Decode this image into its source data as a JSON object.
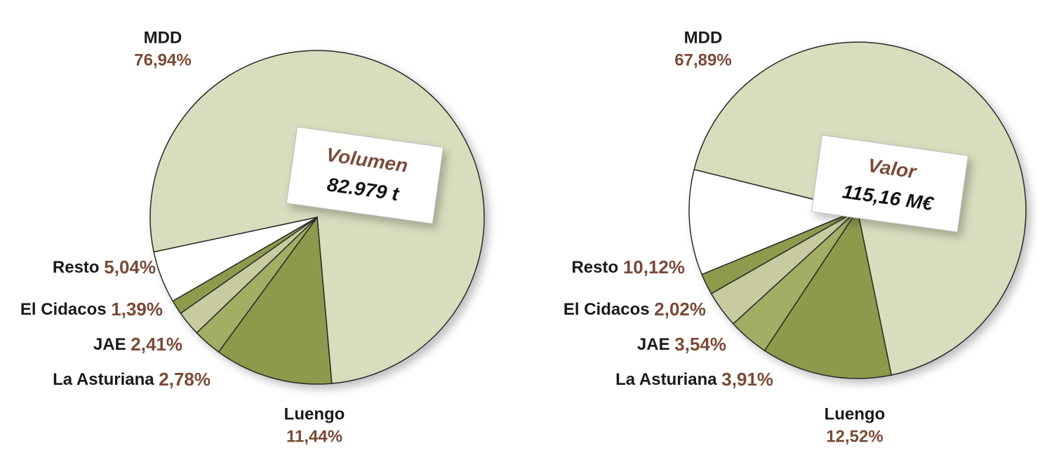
{
  "chart_data": [
    {
      "type": "pie",
      "title": "Volumen",
      "subtitle": "82.979 t",
      "categories": [
        "MDD",
        "Luengo",
        "La Asturiana",
        "JAE",
        "El Cidacos",
        "Resto"
      ],
      "values": [
        76.94,
        11.44,
        2.78,
        2.41,
        1.39,
        5.04
      ],
      "value_labels": [
        "76,94%",
        "11,44%",
        "2,78%",
        "2,41%",
        "1,39%",
        "5,04%"
      ],
      "colors": [
        "#d9dcbd",
        "#8b9a4b",
        "#a3ad63",
        "#c7cb9f",
        "#8e9b4d",
        "#ffffff"
      ]
    },
    {
      "type": "pie",
      "title": "Valor",
      "subtitle": "115,16 M€",
      "categories": [
        "MDD",
        "Luengo",
        "La Asturiana",
        "JAE",
        "El Cidacos",
        "Resto"
      ],
      "values": [
        67.89,
        12.52,
        3.91,
        3.54,
        2.02,
        10.12
      ],
      "value_labels": [
        "67,89%",
        "12,52%",
        "3,91%",
        "3,54%",
        "2,02%",
        "10,12%"
      ],
      "colors": [
        "#d9dcbd",
        "#8b9a4b",
        "#a3ad63",
        "#c7cb9f",
        "#8e9b4d",
        "#ffffff"
      ]
    }
  ]
}
